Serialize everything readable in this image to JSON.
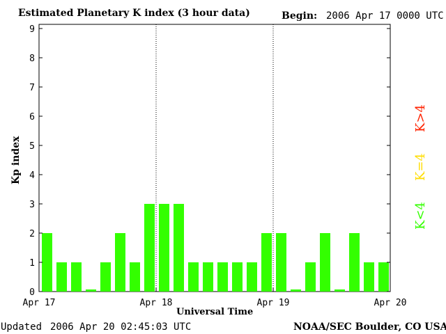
{
  "header": {
    "title": "Estimated Planetary K index (3 hour data)",
    "begin_label": "Begin:",
    "begin_value": "2006 Apr 17 0000 UTC"
  },
  "footer": {
    "updated_label": "Updated",
    "updated_value": "2006 Apr 20 02:45:03 UTC",
    "source": "NOAA/SEC Boulder, CO USA"
  },
  "legend": [
    {
      "label": "K<4",
      "color": "#33ff00"
    },
    {
      "label": "K=4",
      "color": "#ffdd00"
    },
    {
      "label": "K>4",
      "color": "#ff2200"
    }
  ],
  "chart_data": {
    "type": "bar",
    "title": "Estimated Planetary K index (3 hour data)",
    "xlabel": "Universal Time",
    "ylabel": "Kp index",
    "ylim": [
      0,
      9
    ],
    "yticks": [
      0,
      1,
      2,
      3,
      4,
      5,
      6,
      7,
      8,
      9
    ],
    "xlim_days": [
      0,
      3
    ],
    "xtick_labels": [
      "Apr 17",
      "Apr 18",
      "Apr 19",
      "Apr 20"
    ],
    "day_separators": [
      "Apr 18",
      "Apr 19"
    ],
    "interval_hours": 3,
    "bar_color": "#33ff00",
    "values": [
      2,
      1,
      1,
      0,
      1,
      2,
      1,
      3,
      3,
      3,
      1,
      1,
      1,
      1,
      1,
      2,
      2,
      0,
      1,
      2,
      0,
      2,
      1,
      1
    ],
    "grid": false
  }
}
